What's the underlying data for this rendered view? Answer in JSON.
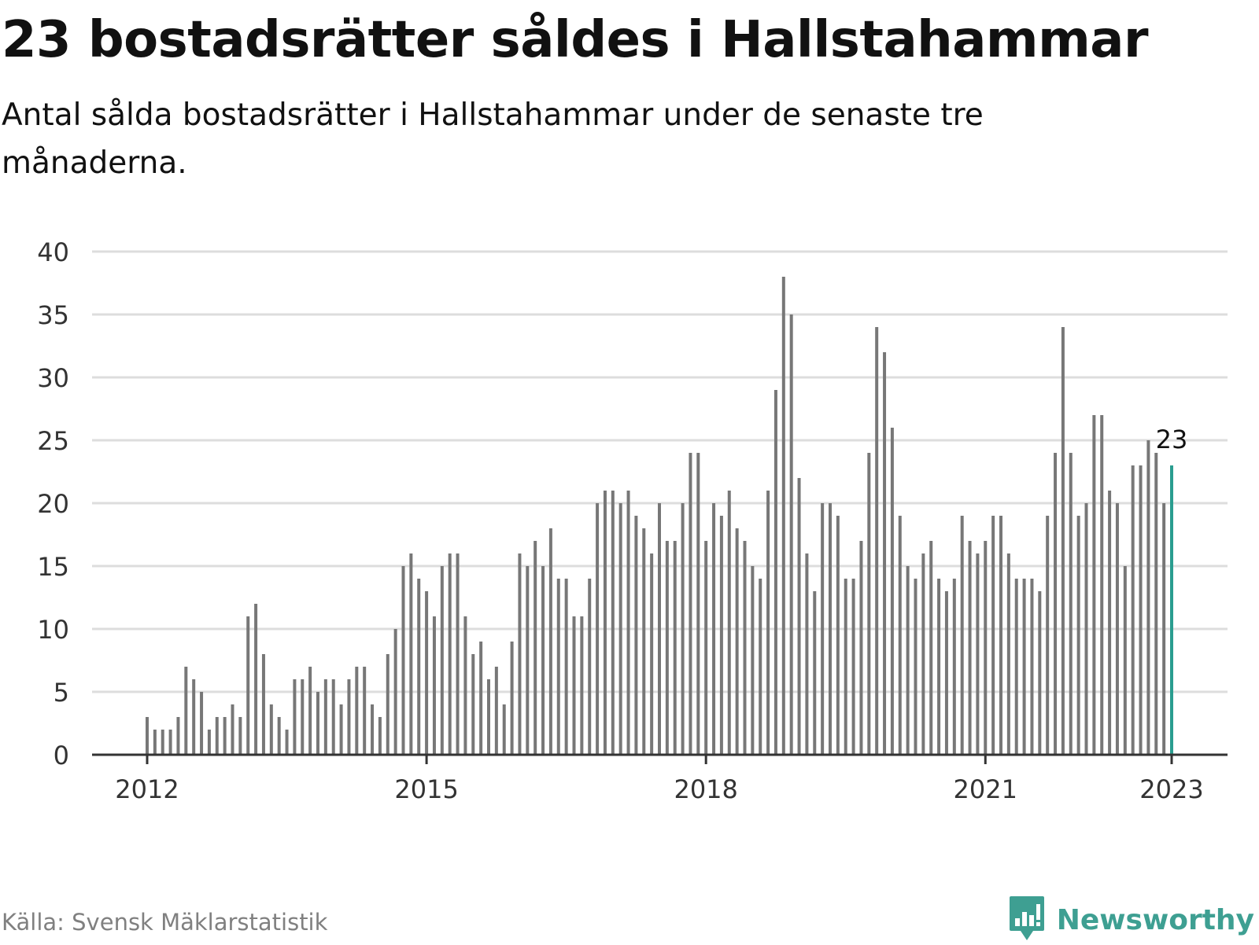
{
  "header": {
    "title": "23 bostadsrätter såldes i Hallstahammar",
    "subtitle": "Antal sålda bostadsrätter i Hallstahammar under de senaste tre månaderna."
  },
  "footer": {
    "source": "Källa: Svensk Mäklarstatistik",
    "brand": "Newsworthy",
    "brand_icon": "bar-chart-bubble-icon"
  },
  "colors": {
    "bar": "#777777",
    "highlight": "#2a9d8f",
    "grid": "#dddddd",
    "axis": "#333333",
    "text": "#111111",
    "source_text": "#808080",
    "brand": "#3e9f92"
  },
  "chart_data": {
    "type": "bar",
    "title": "",
    "xlabel": "",
    "ylabel": "",
    "ylim": [
      0,
      40
    ],
    "yticks": [
      0,
      5,
      10,
      15,
      20,
      25,
      30,
      35,
      40
    ],
    "x_start": "2012-01",
    "x_end": "2023-01",
    "xticks": [
      {
        "label": "2012",
        "date": "2012-01"
      },
      {
        "label": "2015",
        "date": "2015-01"
      },
      {
        "label": "2018",
        "date": "2018-01"
      },
      {
        "label": "2021",
        "date": "2021-01"
      },
      {
        "label": "2023",
        "date": "2023-01"
      }
    ],
    "grid": true,
    "highlight_last": true,
    "last_label": "23",
    "values": [
      3,
      2,
      2,
      2,
      3,
      7,
      6,
      5,
      2,
      3,
      3,
      4,
      3,
      11,
      12,
      8,
      4,
      3,
      2,
      6,
      6,
      7,
      5,
      6,
      6,
      4,
      6,
      7,
      7,
      4,
      3,
      8,
      10,
      15,
      16,
      14,
      13,
      11,
      15,
      16,
      16,
      11,
      8,
      9,
      6,
      7,
      4,
      9,
      16,
      15,
      17,
      15,
      18,
      14,
      14,
      11,
      11,
      14,
      20,
      21,
      21,
      20,
      21,
      19,
      18,
      16,
      20,
      17,
      17,
      20,
      24,
      24,
      17,
      20,
      19,
      21,
      18,
      17,
      15,
      14,
      21,
      29,
      38,
      35,
      22,
      16,
      13,
      20,
      20,
      19,
      14,
      14,
      17,
      24,
      34,
      32,
      26,
      19,
      15,
      14,
      16,
      17,
      14,
      13,
      14,
      19,
      17,
      16,
      17,
      19,
      19,
      16,
      14,
      14,
      14,
      13,
      19,
      24,
      34,
      24,
      19,
      20,
      27,
      27,
      21,
      20,
      15,
      23,
      23,
      25,
      24,
      20,
      23
    ]
  }
}
